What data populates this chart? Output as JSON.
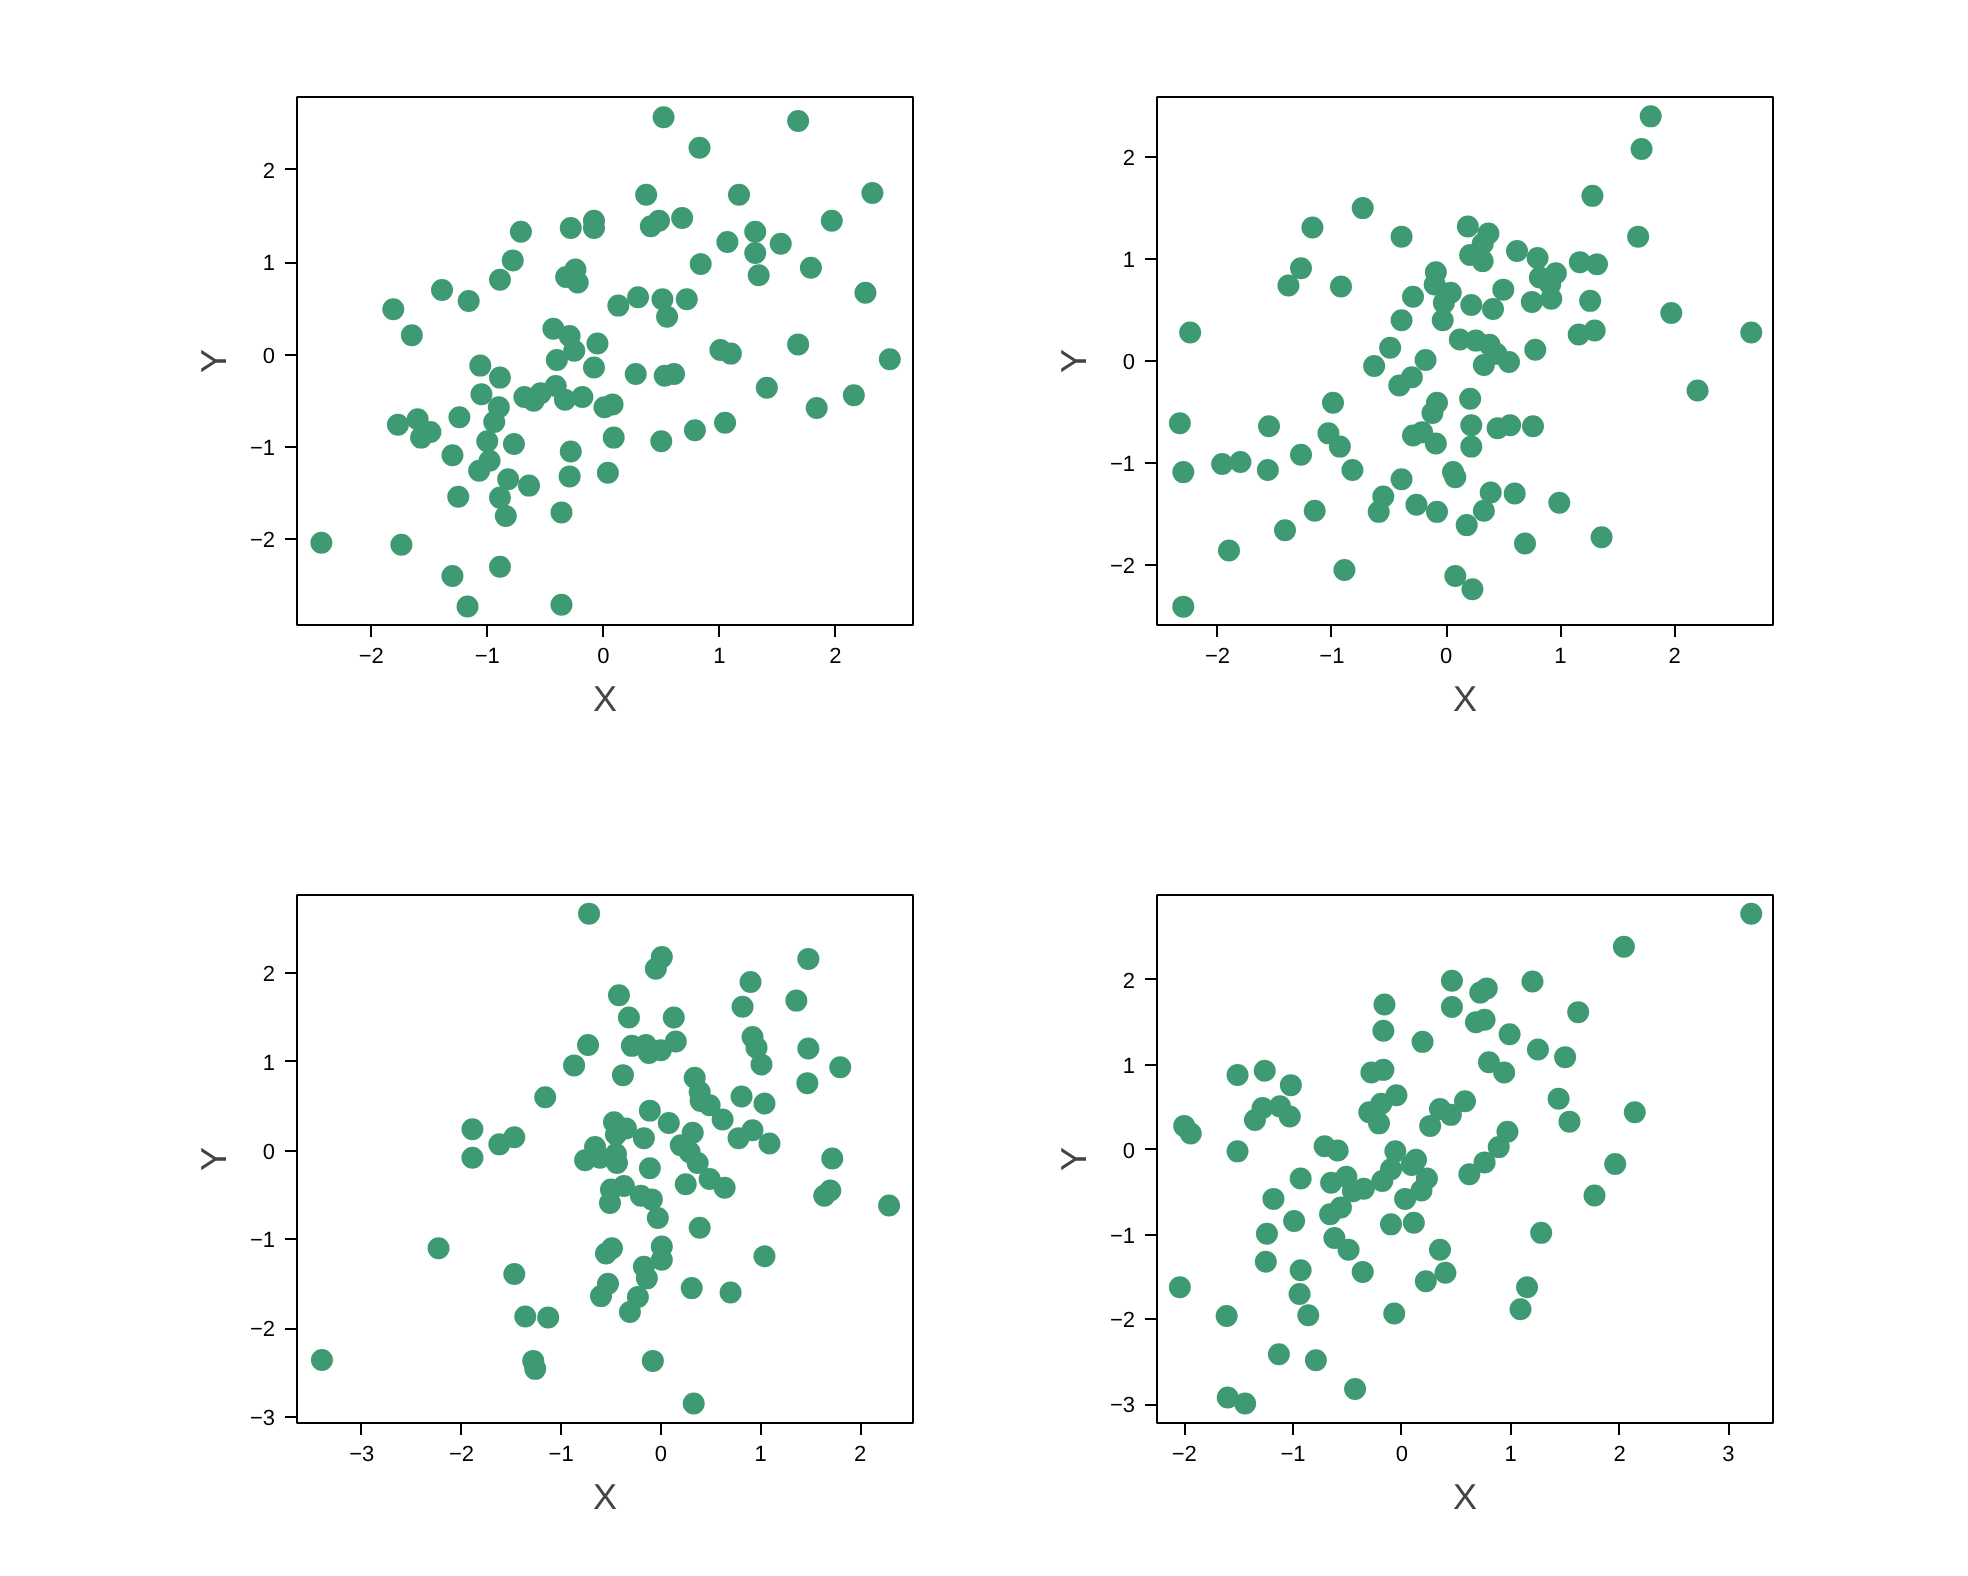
{
  "chart_data": [
    {
      "type": "scatter",
      "xlabel": "X",
      "ylabel": "Y",
      "color": "#3e9a72",
      "marker": "circle",
      "grid": false,
      "xlim": [
        -2.64,
        2.67
      ],
      "ylim": [
        -2.93,
        2.79
      ],
      "xticks": [
        -2,
        -1,
        0,
        1,
        2
      ],
      "yticks": [
        -2,
        -1,
        0,
        1,
        2
      ],
      "x": [
        0.52,
        1.68,
        0.83,
        0.37,
        1.17,
        2.32,
        -0.71,
        -0.28,
        -0.08,
        -0.08,
        0.41,
        0.48,
        0.68,
        1.97,
        1.07,
        1.31,
        1.31,
        1.53,
        -0.78,
        -0.24,
        -0.32,
        -0.22,
        -0.89,
        0.84,
        1.34,
        1.79,
        -1.39,
        -1.16,
        -1.81,
        0.13,
        0.3,
        0.51,
        0.72,
        0.55,
        2.26,
        -1.65,
        -0.43,
        -0.29,
        -0.05,
        -0.25,
        1.01,
        1.1,
        1.68,
        2.47,
        -1.06,
        -0.4,
        -0.08,
        -0.89,
        0.28,
        0.53,
        0.61,
        -1.05,
        -0.68,
        -0.6,
        -0.54,
        -0.41,
        -0.33,
        -0.18,
        0.01,
        0.08,
        -0.9,
        1.41,
        1.84,
        2.16,
        -1.77,
        -1.6,
        -1.49,
        -1.57,
        -1.24,
        -0.94,
        -1.0,
        -0.77,
        0.09,
        0.5,
        0.79,
        1.05,
        -1.3,
        -0.98,
        -1.07,
        -0.28,
        -0.82,
        -0.64,
        -0.29,
        0.04,
        -1.25,
        -0.89,
        -0.84,
        -0.36,
        -2.43,
        -1.74,
        -1.3,
        -0.89,
        -1.17,
        -0.36
      ],
      "values": [
        2.57,
        2.53,
        2.24,
        1.73,
        1.73,
        1.75,
        1.33,
        1.37,
        1.45,
        1.37,
        1.39,
        1.45,
        1.48,
        1.45,
        1.22,
        1.33,
        1.1,
        1.2,
        1.02,
        0.92,
        0.84,
        0.78,
        0.81,
        0.98,
        0.86,
        0.94,
        0.7,
        0.58,
        0.49,
        0.53,
        0.62,
        0.6,
        0.6,
        0.41,
        0.67,
        0.21,
        0.28,
        0.2,
        0.12,
        0.04,
        0.05,
        0.01,
        0.11,
        -0.05,
        -0.12,
        -0.06,
        -0.14,
        -0.25,
        -0.21,
        -0.23,
        -0.21,
        -0.43,
        -0.46,
        -0.5,
        -0.42,
        -0.34,
        -0.49,
        -0.46,
        -0.57,
        -0.54,
        -0.57,
        -0.36,
        -0.58,
        -0.44,
        -0.76,
        -0.7,
        -0.84,
        -0.9,
        -0.68,
        -0.73,
        -0.94,
        -0.97,
        -0.9,
        -0.94,
        -0.82,
        -0.74,
        -1.09,
        -1.15,
        -1.26,
        -1.05,
        -1.35,
        -1.42,
        -1.32,
        -1.28,
        -1.54,
        -1.55,
        -1.75,
        -1.71,
        -2.04,
        -2.06,
        -2.4,
        -2.3,
        -2.73,
        -2.71
      ]
    },
    {
      "type": "scatter",
      "xlabel": "X",
      "ylabel": "Y",
      "color": "#3e9a72",
      "marker": "circle",
      "grid": false,
      "xlim": [
        -2.53,
        2.86
      ],
      "ylim": [
        -2.59,
        2.59
      ],
      "xticks": [
        -2,
        -1,
        0,
        1,
        2
      ],
      "yticks": [
        -2,
        -1,
        0,
        1,
        2
      ],
      "x": [
        1.79,
        1.71,
        1.28,
        -0.73,
        -1.17,
        -0.39,
        0.19,
        0.37,
        0.32,
        0.21,
        0.32,
        0.62,
        0.8,
        1.68,
        -1.27,
        -1.38,
        -0.92,
        -0.09,
        -0.1,
        0.04,
        -0.02,
        -0.03,
        -0.29,
        -0.39,
        0.22,
        0.41,
        0.5,
        0.82,
        0.96,
        0.91,
        0.92,
        0.75,
        1.17,
        1.32,
        1.26,
        1.16,
        1.3,
        1.97,
        2.67,
        -2.24,
        0.12,
        0.26,
        0.38,
        0.44,
        0.33,
        0.55,
        0.78,
        -0.49,
        -0.63,
        -0.18,
        -0.3,
        -0.41,
        2.2,
        -0.99,
        -0.08,
        -0.12,
        0.21,
        0.22,
        0.22,
        0.45,
        0.56,
        0.76,
        -0.29,
        -0.21,
        -0.09,
        -2.33,
        -1.55,
        -1.03,
        -0.93,
        -1.27,
        -2.3,
        -1.96,
        -1.8,
        -1.56,
        -0.82,
        -0.39,
        0.06,
        0.08,
        -0.55,
        -0.59,
        -0.26,
        -0.08,
        0.39,
        0.6,
        0.33,
        0.18,
        0.99,
        -1.15,
        -1.41,
        -1.9,
        0.69,
        1.36,
        -0.89,
        0.08,
        0.23,
        -2.3
      ],
      "values": [
        2.4,
        2.08,
        1.62,
        1.5,
        1.31,
        1.22,
        1.32,
        1.25,
        1.15,
        1.04,
        0.98,
        1.08,
        1.01,
        1.22,
        0.91,
        0.74,
        0.73,
        0.87,
        0.75,
        0.67,
        0.57,
        0.4,
        0.63,
        0.4,
        0.55,
        0.51,
        0.7,
        0.82,
        0.86,
        0.75,
        0.61,
        0.58,
        0.97,
        0.95,
        0.59,
        0.26,
        0.3,
        0.47,
        0.28,
        0.28,
        0.21,
        0.2,
        0.16,
        0.07,
        -0.04,
        -0.01,
        0.11,
        0.13,
        -0.05,
        0.01,
        -0.16,
        -0.24,
        -0.29,
        -0.41,
        -0.41,
        -0.51,
        -0.37,
        -0.63,
        -0.84,
        -0.66,
        -0.63,
        -0.64,
        -0.73,
        -0.7,
        -0.81,
        -0.61,
        -0.64,
        -0.71,
        -0.84,
        -0.92,
        -1.09,
        -1.01,
        -0.99,
        -1.07,
        -1.07,
        -1.16,
        -1.09,
        -1.14,
        -1.33,
        -1.48,
        -1.41,
        -1.48,
        -1.29,
        -1.3,
        -1.47,
        -1.61,
        -1.39,
        -1.47,
        -1.66,
        -1.86,
        -1.79,
        -1.73,
        -2.05,
        -2.11,
        -2.24,
        -2.41
      ]
    },
    {
      "type": "scatter",
      "xlabel": "X",
      "ylabel": "Y",
      "color": "#3e9a72",
      "marker": "circle",
      "grid": false,
      "xlim": [
        -3.65,
        2.53
      ],
      "ylim": [
        -3.07,
        2.88
      ],
      "xticks": [
        -3,
        -2,
        -1,
        0,
        1,
        2
      ],
      "yticks": [
        -3,
        -2,
        -1,
        0,
        1,
        2
      ],
      "x": [
        -0.72,
        0.01,
        -0.05,
        1.48,
        0.9,
        -0.42,
        0.82,
        1.36,
        -0.32,
        0.13,
        -0.73,
        -0.29,
        -0.15,
        -0.12,
        0.0,
        0.15,
        0.92,
        0.96,
        1.48,
        -0.87,
        1.01,
        1.8,
        -0.38,
        1.47,
        0.34,
        0.39,
        0.4,
        0.49,
        -1.16,
        0.81,
        1.04,
        -0.11,
        0.08,
        0.62,
        -1.89,
        -0.47,
        -0.35,
        -0.45,
        0.32,
        -0.17,
        0.92,
        0.78,
        -1.47,
        -1.62,
        -1.89,
        -0.66,
        -0.76,
        -0.61,
        -0.45,
        -0.44,
        0.2,
        0.29,
        0.37,
        1.09,
        -0.11,
        1.72,
        0.25,
        0.49,
        0.64,
        -0.5,
        -0.37,
        -0.2,
        -0.09,
        -0.51,
        1.64,
        1.7,
        -0.03,
        0.39,
        2.29,
        -2.23,
        0.01,
        -0.49,
        -0.55,
        0.01,
        1.04,
        -0.17,
        -0.14,
        -1.47,
        -0.53,
        -0.6,
        -0.23,
        -0.31,
        0.31,
        0.7,
        -1.36,
        -1.13,
        -1.28,
        -1.26,
        -0.08,
        -3.4,
        0.33
      ],
      "values": [
        2.67,
        2.18,
        2.05,
        2.16,
        1.9,
        1.75,
        1.62,
        1.69,
        1.5,
        1.5,
        1.19,
        1.18,
        1.19,
        1.1,
        1.13,
        1.23,
        1.28,
        1.16,
        1.15,
        0.96,
        0.97,
        0.94,
        0.85,
        0.76,
        0.82,
        0.66,
        0.56,
        0.51,
        0.6,
        0.61,
        0.53,
        0.45,
        0.31,
        0.35,
        0.24,
        0.32,
        0.25,
        0.18,
        0.2,
        0.14,
        0.23,
        0.14,
        0.15,
        0.07,
        -0.08,
        0.04,
        -0.11,
        -0.08,
        -0.04,
        -0.14,
        0.06,
        -0.02,
        -0.14,
        0.08,
        -0.2,
        -0.09,
        -0.38,
        -0.32,
        -0.42,
        -0.44,
        -0.4,
        -0.51,
        -0.55,
        -0.59,
        -0.51,
        -0.45,
        -0.76,
        -0.87,
        -0.62,
        -1.1,
        -1.08,
        -1.1,
        -1.16,
        -1.23,
        -1.19,
        -1.31,
        -1.44,
        -1.39,
        -1.5,
        -1.64,
        -1.65,
        -1.82,
        -1.55,
        -1.6,
        -1.87,
        -1.88,
        -2.37,
        -2.46,
        -2.37,
        -2.36,
        -2.85
      ]
    },
    {
      "type": "scatter",
      "xlabel": "X",
      "ylabel": "Y",
      "color": "#3e9a72",
      "marker": "circle",
      "grid": false,
      "xlim": [
        -2.25,
        3.41
      ],
      "ylim": [
        -3.22,
        3.0
      ],
      "xticks": [
        -2,
        -1,
        0,
        1,
        2,
        3
      ],
      "yticks": [
        -3,
        -2,
        -1,
        0,
        1,
        2
      ],
      "x": [
        3.21,
        2.04,
        0.46,
        0.46,
        -0.16,
        -0.17,
        0.72,
        0.78,
        1.2,
        0.68,
        0.76,
        1.62,
        0.99,
        1.25,
        1.5,
        0.19,
        0.8,
        0.94,
        -1.51,
        -1.26,
        -1.02,
        -0.28,
        -0.17,
        -0.05,
        -0.19,
        -0.3,
        -0.21,
        -1.28,
        -1.12,
        -1.35,
        -1.03,
        -2.0,
        -1.94,
        0.58,
        0.35,
        0.45,
        0.26,
        1.44,
        1.54,
        2.14,
        0.97,
        0.89,
        -1.51,
        -0.71,
        -0.59,
        -0.06,
        -0.1,
        -0.18,
        0.09,
        0.13,
        0.23,
        0.18,
        0.03,
        0.76,
        0.62,
        1.96,
        1.77,
        -0.93,
        -0.65,
        -0.51,
        -0.45,
        -0.35,
        -1.18,
        -0.56,
        -0.66,
        -0.99,
        -1.24,
        -0.1,
        0.11,
        -0.62,
        -0.49,
        -1.25,
        0.35,
        0.4,
        0.22,
        -0.36,
        -0.93,
        -0.94,
        -0.86,
        -0.07,
        1.28,
        1.15,
        1.09,
        -2.04,
        -1.61,
        -1.13,
        -0.79,
        -0.43,
        -1.6,
        -1.44
      ],
      "values": [
        2.78,
        2.39,
        1.99,
        1.68,
        1.71,
        1.4,
        1.85,
        1.9,
        1.98,
        1.5,
        1.53,
        1.62,
        1.36,
        1.18,
        1.09,
        1.27,
        1.03,
        0.91,
        0.88,
        0.93,
        0.76,
        0.91,
        0.94,
        0.64,
        0.54,
        0.44,
        0.31,
        0.49,
        0.51,
        0.35,
        0.39,
        0.28,
        0.19,
        0.57,
        0.48,
        0.41,
        0.28,
        0.6,
        0.33,
        0.44,
        0.21,
        0.03,
        -0.02,
        0.04,
        -0.01,
        -0.02,
        -0.23,
        -0.37,
        -0.18,
        -0.12,
        -0.34,
        -0.48,
        -0.58,
        -0.15,
        -0.29,
        -0.17,
        -0.54,
        -0.34,
        -0.39,
        -0.32,
        -0.49,
        -0.46,
        -0.58,
        -0.68,
        -0.76,
        -0.84,
        -0.99,
        -0.88,
        -0.86,
        -1.04,
        -1.18,
        -1.32,
        -1.18,
        -1.45,
        -1.55,
        -1.44,
        -1.42,
        -1.7,
        -1.95,
        -1.93,
        -0.98,
        -1.62,
        -1.88,
        -1.62,
        -1.96,
        -2.41,
        -2.48,
        -2.82,
        -2.92,
        -2.99
      ]
    }
  ]
}
